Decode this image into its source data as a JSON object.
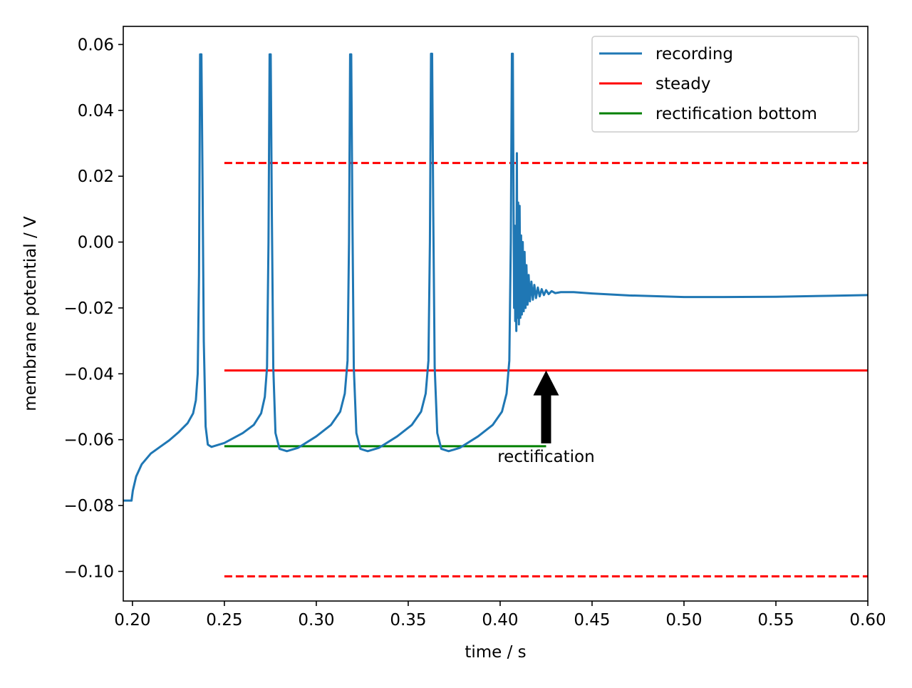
{
  "chart_data": {
    "type": "line",
    "xlabel": "time / s",
    "ylabel": "membrane potential / V",
    "xlim": [
      0.195,
      0.6
    ],
    "ylim": [
      -0.109,
      0.0655
    ],
    "x_ticks": [
      0.2,
      0.25,
      0.3,
      0.35,
      0.4,
      0.45,
      0.5,
      0.55,
      0.6
    ],
    "x_tick_labels": [
      "0.20",
      "0.25",
      "0.30",
      "0.35",
      "0.40",
      "0.45",
      "0.50",
      "0.55",
      "0.60"
    ],
    "y_ticks": [
      0.06,
      0.04,
      0.02,
      0.0,
      -0.02,
      -0.04,
      -0.06,
      -0.08,
      -0.1
    ],
    "y_tick_labels": [
      "0.06",
      "0.04",
      "0.02",
      "0.00",
      "−0.02",
      "−0.04",
      "−0.06",
      "−0.08",
      "−0.10"
    ],
    "grid": false,
    "legend": {
      "placement": "top-right",
      "entries": [
        {
          "label": "recording",
          "color": "#1f77b4"
        },
        {
          "label": "steady",
          "color": "#ff0000"
        },
        {
          "label": "rectification bottom",
          "color": "#008000"
        }
      ]
    },
    "series": [
      {
        "name": "recording",
        "color": "#1f77b4",
        "points": [
          [
            0.195,
            -0.0785
          ],
          [
            0.1995,
            -0.0785
          ],
          [
            0.2002,
            -0.0755
          ],
          [
            0.202,
            -0.0712
          ],
          [
            0.205,
            -0.0675
          ],
          [
            0.21,
            -0.0642
          ],
          [
            0.215,
            -0.0622
          ],
          [
            0.22,
            -0.0602
          ],
          [
            0.225,
            -0.0578
          ],
          [
            0.23,
            -0.055
          ],
          [
            0.233,
            -0.052
          ],
          [
            0.2345,
            -0.048
          ],
          [
            0.2355,
            -0.04
          ],
          [
            0.2362,
            -0.01
          ],
          [
            0.2368,
            0.057
          ],
          [
            0.2375,
            0.057
          ],
          [
            0.2381,
            0.02
          ],
          [
            0.2388,
            -0.03
          ],
          [
            0.2398,
            -0.056
          ],
          [
            0.241,
            -0.0615
          ],
          [
            0.243,
            -0.0622
          ],
          [
            0.25,
            -0.061
          ],
          [
            0.26,
            -0.058
          ],
          [
            0.266,
            -0.0555
          ],
          [
            0.27,
            -0.052
          ],
          [
            0.272,
            -0.047
          ],
          [
            0.2732,
            -0.038
          ],
          [
            0.274,
            0.0
          ],
          [
            0.2746,
            0.057
          ],
          [
            0.2752,
            0.057
          ],
          [
            0.2758,
            0.01
          ],
          [
            0.2766,
            -0.038
          ],
          [
            0.2778,
            -0.058
          ],
          [
            0.28,
            -0.0628
          ],
          [
            0.284,
            -0.0635
          ],
          [
            0.29,
            -0.0625
          ],
          [
            0.3,
            -0.059
          ],
          [
            0.308,
            -0.0555
          ],
          [
            0.313,
            -0.0515
          ],
          [
            0.3155,
            -0.046
          ],
          [
            0.317,
            -0.036
          ],
          [
            0.3178,
            0.0
          ],
          [
            0.3184,
            0.057
          ],
          [
            0.319,
            0.057
          ],
          [
            0.3196,
            0.01
          ],
          [
            0.3204,
            -0.038
          ],
          [
            0.3218,
            -0.058
          ],
          [
            0.324,
            -0.0628
          ],
          [
            0.328,
            -0.0635
          ],
          [
            0.334,
            -0.0625
          ],
          [
            0.344,
            -0.059
          ],
          [
            0.352,
            -0.0555
          ],
          [
            0.357,
            -0.0515
          ],
          [
            0.3595,
            -0.046
          ],
          [
            0.361,
            -0.036
          ],
          [
            0.3618,
            0.0
          ],
          [
            0.3624,
            0.0572
          ],
          [
            0.363,
            0.0572
          ],
          [
            0.3636,
            0.01
          ],
          [
            0.3644,
            -0.038
          ],
          [
            0.3658,
            -0.058
          ],
          [
            0.368,
            -0.0628
          ],
          [
            0.372,
            -0.0635
          ],
          [
            0.378,
            -0.0625
          ],
          [
            0.388,
            -0.059
          ],
          [
            0.396,
            -0.0555
          ],
          [
            0.401,
            -0.0515
          ],
          [
            0.4035,
            -0.046
          ],
          [
            0.405,
            -0.036
          ],
          [
            0.4058,
            0.0
          ],
          [
            0.4064,
            0.0572
          ],
          [
            0.4069,
            0.0572
          ],
          [
            0.4073,
            0.01
          ],
          [
            0.4076,
            -0.02
          ],
          [
            0.4079,
            0.005
          ],
          [
            0.4082,
            -0.024
          ],
          [
            0.4085,
            -0.012
          ],
          [
            0.4088,
            -0.027
          ],
          [
            0.4091,
            0.027
          ],
          [
            0.4094,
            -0.023
          ],
          [
            0.4098,
            0.012
          ],
          [
            0.4102,
            -0.025
          ],
          [
            0.4106,
            0.011
          ],
          [
            0.411,
            -0.023
          ],
          [
            0.4114,
            0.002
          ],
          [
            0.4118,
            -0.022
          ],
          [
            0.4123,
            0.0
          ],
          [
            0.4128,
            -0.021
          ],
          [
            0.4133,
            -0.003
          ],
          [
            0.4138,
            -0.02
          ],
          [
            0.4143,
            -0.007
          ],
          [
            0.4149,
            -0.019
          ],
          [
            0.4155,
            -0.01
          ],
          [
            0.4162,
            -0.018
          ],
          [
            0.417,
            -0.012
          ],
          [
            0.4178,
            -0.0175
          ],
          [
            0.4186,
            -0.013
          ],
          [
            0.4195,
            -0.017
          ],
          [
            0.4205,
            -0.0138
          ],
          [
            0.4215,
            -0.0165
          ],
          [
            0.4226,
            -0.0143
          ],
          [
            0.4238,
            -0.0161
          ],
          [
            0.425,
            -0.0146
          ],
          [
            0.4264,
            -0.0158
          ],
          [
            0.428,
            -0.0149
          ],
          [
            0.43,
            -0.0155
          ],
          [
            0.433,
            -0.0152
          ],
          [
            0.44,
            -0.0152
          ],
          [
            0.45,
            -0.0156
          ],
          [
            0.47,
            -0.0162
          ],
          [
            0.5,
            -0.0167
          ],
          [
            0.52,
            -0.0167
          ],
          [
            0.55,
            -0.0166
          ],
          [
            0.58,
            -0.0163
          ],
          [
            0.6,
            -0.0161
          ]
        ]
      }
    ],
    "reference_lines": [
      {
        "name": "steady",
        "style": "solid",
        "color": "#ff0000",
        "y": -0.039,
        "x": [
          0.25,
          0.6
        ]
      },
      {
        "name": "steady upper",
        "style": "dashed",
        "color": "#ff0000",
        "y": 0.024,
        "x": [
          0.25,
          0.6
        ]
      },
      {
        "name": "steady lower",
        "style": "dashed",
        "color": "#ff0000",
        "y": -0.1015,
        "x": [
          0.25,
          0.6
        ]
      },
      {
        "name": "rectification bottom",
        "style": "solid",
        "color": "#008000",
        "y": -0.062,
        "x": [
          0.25,
          0.425
        ]
      }
    ],
    "annotations": [
      {
        "text": "rectification",
        "arrow_from": [
          0.425,
          -0.062
        ],
        "arrow_to": [
          0.425,
          -0.039
        ]
      }
    ]
  }
}
